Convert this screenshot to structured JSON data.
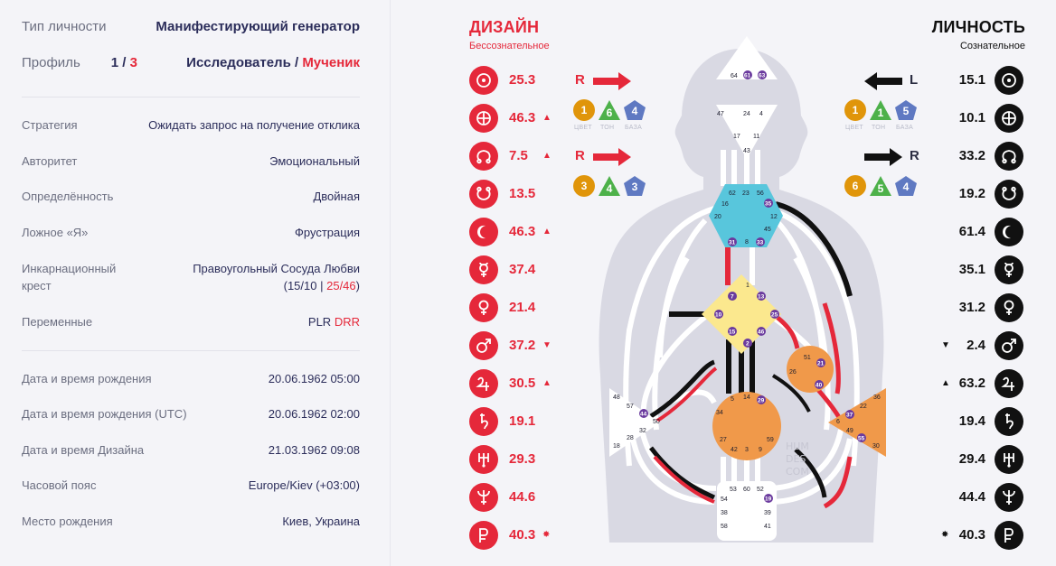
{
  "info": {
    "type": {
      "label": "Тип личности",
      "value": "Манифестирующий генератор"
    },
    "profile": {
      "label": "Профиль",
      "num1": "1",
      "slash": " / ",
      "num2": "3",
      "name1": "Исследователь",
      "sep": " / ",
      "name2": "Мученик"
    },
    "strategy": {
      "label": "Стратегия",
      "value": "Ожидать запрос на получение отклика"
    },
    "authority": {
      "label": "Авторитет",
      "value": "Эмоциональный"
    },
    "definition": {
      "label": "Определённость",
      "value": "Двойная"
    },
    "notself": {
      "label": "Ложное «Я»",
      "value": "Фрустрация"
    },
    "cross": {
      "label1": "Инкарнационный",
      "label2": "крест",
      "value1": "Правоугольный Сосуда Любви",
      "open": "(",
      "g1": "15/10",
      "bar": " | ",
      "g2": "25/46",
      "close": ")"
    },
    "variables": {
      "label": "Переменные",
      "v1": "PLR",
      "v2": "DRR"
    },
    "birth": {
      "label": "Дата и время рождения",
      "value": "20.06.1962 05:00"
    },
    "birth_utc": {
      "label": "Дата и время рождения (UTC)",
      "value": "20.06.1962 02:00"
    },
    "design_time": {
      "label": "Дата и время Дизайна",
      "value": "21.03.1962 09:08"
    },
    "timezone": {
      "label": "Часовой пояс",
      "value": "Europe/Kiev (+03:00)"
    },
    "place": {
      "label": "Место рождения",
      "value": "Киев, Украина"
    }
  },
  "design": {
    "title": "ДИЗАЙН",
    "subtitle": "Бессознательное",
    "color": "#e5283a",
    "planets": [
      {
        "icon": "sun-icon",
        "value": "25.3",
        "mark": ""
      },
      {
        "icon": "earth-icon",
        "value": "46.3",
        "mark": "▲"
      },
      {
        "icon": "north-node-icon",
        "value": "7.5",
        "mark": "▲"
      },
      {
        "icon": "south-node-icon",
        "value": "13.5",
        "mark": ""
      },
      {
        "icon": "moon-icon",
        "value": "46.3",
        "mark": "▲"
      },
      {
        "icon": "mercury-icon",
        "value": "37.4",
        "mark": ""
      },
      {
        "icon": "venus-icon",
        "value": "21.4",
        "mark": ""
      },
      {
        "icon": "mars-icon",
        "value": "37.2",
        "mark": "▼"
      },
      {
        "icon": "jupiter-icon",
        "value": "30.5",
        "mark": "▲"
      },
      {
        "icon": "saturn-icon",
        "value": "19.1",
        "mark": ""
      },
      {
        "icon": "uranus-icon",
        "value": "29.3",
        "mark": ""
      },
      {
        "icon": "neptune-icon",
        "value": "44.6",
        "mark": ""
      },
      {
        "icon": "pluto-icon",
        "value": "40.3",
        "mark": "✸"
      }
    ]
  },
  "personality": {
    "title": "ЛИЧНОСТЬ",
    "subtitle": "Сознательное",
    "color": "#111111",
    "planets": [
      {
        "icon": "sun-icon",
        "value": "15.1",
        "mark": ""
      },
      {
        "icon": "earth-icon",
        "value": "10.1",
        "mark": ""
      },
      {
        "icon": "north-node-icon",
        "value": "33.2",
        "mark": ""
      },
      {
        "icon": "south-node-icon",
        "value": "19.2",
        "mark": ""
      },
      {
        "icon": "moon-icon",
        "value": "61.4",
        "mark": ""
      },
      {
        "icon": "mercury-icon",
        "value": "35.1",
        "mark": ""
      },
      {
        "icon": "venus-icon",
        "value": "31.2",
        "mark": ""
      },
      {
        "icon": "mars-icon",
        "value": "2.4",
        "mark": "▼"
      },
      {
        "icon": "jupiter-icon",
        "value": "63.2",
        "mark": "▲"
      },
      {
        "icon": "saturn-icon",
        "value": "19.4",
        "mark": ""
      },
      {
        "icon": "uranus-icon",
        "value": "29.4",
        "mark": ""
      },
      {
        "icon": "neptune-icon",
        "value": "44.4",
        "mark": ""
      },
      {
        "icon": "pluto-icon",
        "value": "40.3",
        "mark": "✸"
      }
    ]
  },
  "variables_panel": {
    "design_top": {
      "dir": "R",
      "color": "1",
      "tone": "6",
      "base": "4"
    },
    "design_bottom": {
      "dir": "R",
      "color": "3",
      "tone": "4",
      "base": "3"
    },
    "pers_top": {
      "dir": "L",
      "color": "1",
      "tone": "1",
      "base": "5"
    },
    "pers_bottom": {
      "dir": "R",
      "color": "6",
      "tone": "5",
      "base": "4"
    },
    "labels": {
      "color": "ЦВЕТ",
      "tone": "ТОН",
      "base": "БАЗА"
    }
  },
  "bodygraph": {
    "watermark": [
      "HUM",
      "DES",
      "COM"
    ],
    "head": [
      "64",
      "61",
      "63"
    ],
    "ajna": [
      "47",
      "24",
      "4",
      "17",
      "11",
      "43"
    ],
    "throat": [
      "62",
      "23",
      "56",
      "16",
      "35",
      "20",
      "12",
      "45",
      "31",
      "8",
      "33"
    ],
    "g": [
      "1",
      "7",
      "13",
      "10",
      "25",
      "15",
      "46",
      "2"
    ],
    "ego": [
      "51",
      "21",
      "26",
      "40"
    ],
    "spleen": [
      "48",
      "57",
      "44",
      "50",
      "32",
      "28",
      "18"
    ],
    "sacral": [
      "5",
      "14",
      "29",
      "34",
      "27",
      "59",
      "42",
      "3",
      "9"
    ],
    "solar": [
      "36",
      "22",
      "37",
      "6",
      "49",
      "55",
      "30"
    ],
    "root": [
      "53",
      "60",
      "52",
      "54",
      "19",
      "38",
      "39",
      "58",
      "41"
    ]
  },
  "colors": {
    "orange": "#f0994a",
    "cyan": "#58c6dc",
    "yellow": "#fbe88e",
    "purple": "#6b3b9e",
    "red": "#e5283a",
    "badge_orange": "#e0950a",
    "badge_green": "#4db14a",
    "badge_blue": "#5f79c2"
  }
}
